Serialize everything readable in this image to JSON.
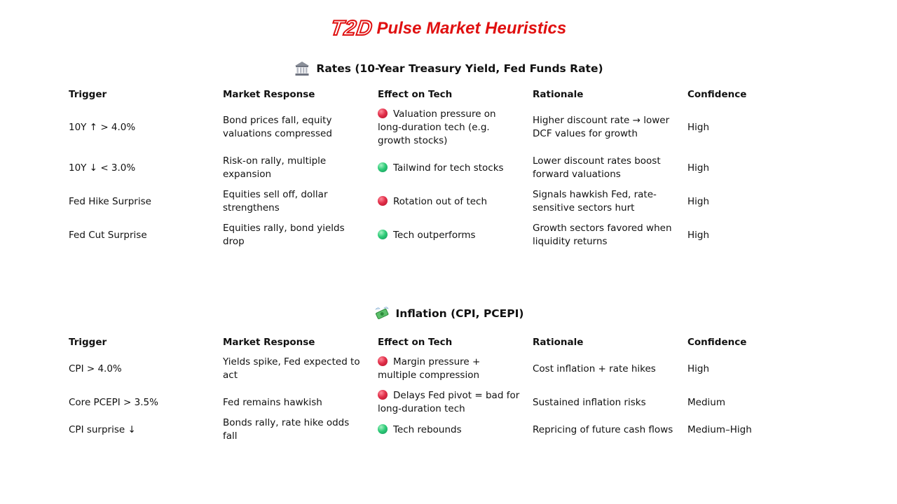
{
  "header": {
    "logo_text": "T2D",
    "title": "Pulse Market Heuristics",
    "brand_color": "#e01010"
  },
  "sections": [
    {
      "icon": "bank-building-icon",
      "heading": "Rates (10-Year Treasury Yield, Fed Funds Rate)",
      "columns": [
        "Trigger",
        "Market Response",
        "Effect on Tech",
        "Rationale",
        "Confidence"
      ],
      "rows": [
        {
          "trigger": "10Y ↑ > 4.0%",
          "response": "Bond prices fall, equity valuations compressed",
          "effect_signal": "red",
          "effect": "Valuation pressure on long-duration tech (e.g. growth stocks)",
          "rationale": "Higher discount rate → lower DCF values for growth",
          "confidence": "High"
        },
        {
          "trigger": "10Y ↓ < 3.0%",
          "response": "Risk-on rally, multiple expansion",
          "effect_signal": "green",
          "effect": "Tailwind for tech stocks",
          "rationale": "Lower discount rates boost forward valuations",
          "confidence": "High"
        },
        {
          "trigger": "Fed Hike Surprise",
          "response": "Equities sell off, dollar strengthens",
          "effect_signal": "red",
          "effect": "Rotation out of tech",
          "rationale": "Signals hawkish Fed, rate-sensitive sectors hurt",
          "confidence": "High"
        },
        {
          "trigger": "Fed Cut Surprise",
          "response": "Equities rally, bond yields drop",
          "effect_signal": "green",
          "effect": "Tech outperforms",
          "rationale": "Growth sectors favored when liquidity returns",
          "confidence": "High"
        }
      ]
    },
    {
      "icon": "money-with-wings-icon",
      "heading": "Inflation (CPI, PCEPI)",
      "columns": [
        "Trigger",
        "Market Response",
        "Effect on Tech",
        "Rationale",
        "Confidence"
      ],
      "rows": [
        {
          "trigger": "CPI > 4.0%",
          "response": "Yields spike, Fed expected to act",
          "effect_signal": "red",
          "effect": "Margin pressure + multiple compression",
          "rationale": "Cost inflation + rate hikes",
          "confidence": "High"
        },
        {
          "trigger": "Core PCEPI > 3.5%",
          "response": "Fed remains hawkish",
          "effect_signal": "red",
          "effect": "Delays Fed pivot = bad for long-duration tech",
          "rationale": "Sustained inflation risks",
          "confidence": "Medium"
        },
        {
          "trigger": "CPI surprise ↓",
          "response": "Bonds rally, rate hike odds fall",
          "effect_signal": "green",
          "effect": "Tech rebounds",
          "rationale": "Repricing of future cash flows",
          "confidence": "Medium–High"
        }
      ]
    }
  ]
}
